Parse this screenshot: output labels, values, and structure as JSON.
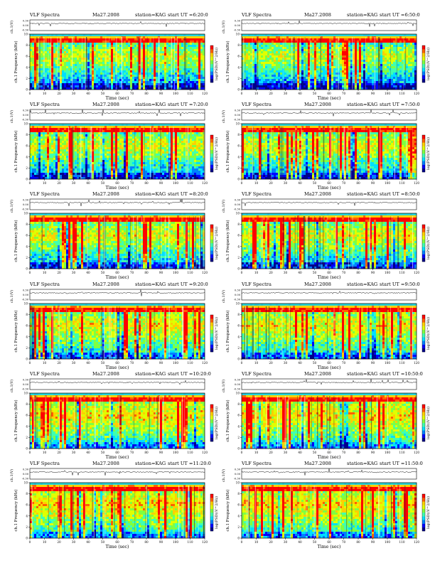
{
  "chart_data": [
    {
      "type": "heatmap",
      "col": 0,
      "row": 0,
      "title": {
        "left": "VLF Spectra",
        "mid": "Ma27.2008",
        "station": "station=KAG",
        "start": "start  UT =6:20:0"
      },
      "ylabel_top": "ch.1(V)",
      "ylabel_spec": "ch.1 Frequency (kHz)",
      "xlabel": "Time (sec)",
      "colorbar_label": "log(PSD)(V^2/Hz)",
      "x_ticks": [
        0,
        10,
        20,
        30,
        40,
        50,
        60,
        70,
        80,
        90,
        100,
        110,
        120
      ],
      "y_ticks": [
        0,
        2,
        4,
        6,
        8,
        10
      ],
      "top_ticks": [
        "0.30",
        "0.00",
        "-0.30"
      ],
      "xlim": [
        0,
        120
      ],
      "ylim": [
        0,
        10
      ],
      "intensity": 0.35
    },
    {
      "type": "heatmap",
      "col": 1,
      "row": 0,
      "title": {
        "left": "VLF Spectra",
        "mid": "Ma27.2008",
        "station": "station=KAG",
        "start": "start  UT =6:50:0"
      },
      "ylabel_top": "ch.1(V)",
      "ylabel_spec": "ch.1 Frequency (kHz)",
      "xlabel": "Time (sec)",
      "colorbar_label": "log(PSD)(V^2/Hz)",
      "x_ticks": [
        0,
        10,
        20,
        30,
        40,
        50,
        60,
        70,
        80,
        90,
        100,
        110,
        120
      ],
      "y_ticks": [
        0,
        2,
        4,
        6,
        8,
        10
      ],
      "top_ticks": [
        "0.30",
        "0.00",
        "-0.30"
      ],
      "xlim": [
        0,
        120
      ],
      "ylim": [
        0,
        10
      ],
      "intensity": 0.35
    },
    {
      "type": "heatmap",
      "col": 0,
      "row": 1,
      "title": {
        "left": "VLF Spectra",
        "mid": "Ma27.2008",
        "station": "station=KAG",
        "start": "start  UT =7:20:0"
      },
      "ylabel_top": "ch.1(V)",
      "ylabel_spec": "ch.1 Frequency (kHz)",
      "xlabel": "Time (sec)",
      "colorbar_label": "log(PSD)(V^2/Hz)",
      "x_ticks": [
        0,
        10,
        20,
        30,
        40,
        50,
        60,
        70,
        80,
        90,
        100,
        110,
        120
      ],
      "y_ticks": [
        0,
        2,
        4,
        6,
        8,
        10
      ],
      "top_ticks": [
        "0.30",
        "0.00",
        "-0.30"
      ],
      "xlim": [
        0,
        120
      ],
      "ylim": [
        0,
        10
      ],
      "intensity": 0.45
    },
    {
      "type": "heatmap",
      "col": 1,
      "row": 1,
      "title": {
        "left": "VLF Spectra",
        "mid": "Ma27.2008",
        "station": "station=KAG",
        "start": "start  UT =7:50:0"
      },
      "ylabel_top": "ch.1(V)",
      "ylabel_spec": "ch.1 Frequency (kHz)",
      "xlabel": "Time (sec)",
      "colorbar_label": "log(PSD)(V^2/Hz)",
      "x_ticks": [
        0,
        10,
        20,
        30,
        40,
        50,
        60,
        70,
        80,
        90,
        100,
        110,
        120
      ],
      "y_ticks": [
        0,
        2,
        4,
        6,
        8,
        10
      ],
      "top_ticks": [
        "0.30",
        "0.00",
        "-0.30"
      ],
      "xlim": [
        0,
        120
      ],
      "ylim": [
        0,
        10
      ],
      "intensity": 0.45
    },
    {
      "type": "heatmap",
      "col": 0,
      "row": 2,
      "title": {
        "left": "VLF Spectra",
        "mid": "Ma27.2008",
        "station": "station=KAG",
        "start": "start  UT =8:20:0"
      },
      "ylabel_top": "ch.1(V)",
      "ylabel_spec": "ch.1 Frequency (kHz)",
      "xlabel": "Time (sec)",
      "colorbar_label": "log(PSD)(V^2/Hz)",
      "x_ticks": [
        0,
        10,
        20,
        30,
        40,
        50,
        60,
        70,
        80,
        90,
        100,
        110,
        120
      ],
      "y_ticks": [
        0,
        2,
        4,
        6,
        8,
        10
      ],
      "top_ticks": [
        "0.30",
        "0.00",
        "-0.30"
      ],
      "xlim": [
        0,
        120
      ],
      "ylim": [
        0,
        10
      ],
      "intensity": 0.5
    },
    {
      "type": "heatmap",
      "col": 1,
      "row": 2,
      "title": {
        "left": "VLF Spectra",
        "mid": "Ma27.2008",
        "station": "station=KAG",
        "start": "start  UT =8:50:0"
      },
      "ylabel_top": "ch.1(V)",
      "ylabel_spec": "ch.1 Frequency (kHz)",
      "xlabel": "Time (sec)",
      "colorbar_label": "log(PSD)(V^2/Hz)",
      "x_ticks": [
        0,
        10,
        20,
        30,
        40,
        50,
        60,
        70,
        80,
        90,
        100,
        110,
        120
      ],
      "y_ticks": [
        0,
        2,
        4,
        6,
        8,
        10
      ],
      "top_ticks": [
        "0.30",
        "0.00",
        "-0.30"
      ],
      "xlim": [
        0,
        120
      ],
      "ylim": [
        0,
        10
      ],
      "intensity": 0.5
    },
    {
      "type": "heatmap",
      "col": 0,
      "row": 3,
      "title": {
        "left": "VLF Spectra",
        "mid": "Ma27.2008",
        "station": "station=KAG",
        "start": "start  UT =9:20:0"
      },
      "ylabel_top": "ch.1(V)",
      "ylabel_spec": "ch.1 Frequency (kHz)",
      "xlabel": "Time (sec)",
      "colorbar_label": "log(PSD)(V^2/Hz)",
      "x_ticks": [
        0,
        10,
        20,
        30,
        40,
        50,
        60,
        70,
        80,
        90,
        100,
        110,
        120
      ],
      "y_ticks": [
        0,
        2,
        4,
        6,
        8,
        10
      ],
      "top_ticks": [
        "0.30",
        "0.00",
        "-0.30"
      ],
      "xlim": [
        0,
        120
      ],
      "ylim": [
        0,
        10
      ],
      "intensity": 0.6
    },
    {
      "type": "heatmap",
      "col": 1,
      "row": 3,
      "title": {
        "left": "VLF Spectra",
        "mid": "Ma27.2008",
        "station": "station=KAG",
        "start": "start  UT =9:50:0"
      },
      "ylabel_top": "ch.1(V)",
      "ylabel_spec": "ch.1 Frequency (kHz)",
      "xlabel": "Time (sec)",
      "colorbar_label": "log(PSD)(V^2/Hz)",
      "x_ticks": [
        0,
        10,
        20,
        30,
        40,
        50,
        60,
        70,
        80,
        90,
        100,
        110,
        120
      ],
      "y_ticks": [
        0,
        2,
        4,
        6,
        8,
        10
      ],
      "top_ticks": [
        "0.30",
        "0.00",
        "-0.30"
      ],
      "xlim": [
        0,
        120
      ],
      "ylim": [
        0,
        10
      ],
      "intensity": 0.6
    },
    {
      "type": "heatmap",
      "col": 0,
      "row": 4,
      "title": {
        "left": "VLF Spectra",
        "mid": "Ma27.2008",
        "station": "station=KAG",
        "start": "start  UT =10:20:0"
      },
      "ylabel_top": "ch.1(V)",
      "ylabel_spec": "ch.1 Frequency (kHz)",
      "xlabel": "Time (sec)",
      "colorbar_label": "log(PSD)(V^2/Hz)",
      "x_ticks": [
        0,
        10,
        20,
        30,
        40,
        50,
        60,
        70,
        80,
        90,
        100,
        110,
        120
      ],
      "y_ticks": [
        0,
        2,
        4,
        6,
        8,
        10
      ],
      "top_ticks": [
        "0.30",
        "0.00",
        "-0.30"
      ],
      "xlim": [
        0,
        120
      ],
      "ylim": [
        0,
        10
      ],
      "intensity": 0.7
    },
    {
      "type": "heatmap",
      "col": 1,
      "row": 4,
      "title": {
        "left": "VLF Spectra",
        "mid": "Ma27.2008",
        "station": "station=KAG",
        "start": "start  UT =10:50:0"
      },
      "ylabel_top": "ch.1(V)",
      "ylabel_spec": "ch.1 Frequency (kHz)",
      "xlabel": "Time (sec)",
      "colorbar_label": "log(PSD)(V^2/Hz)",
      "x_ticks": [
        0,
        10,
        20,
        30,
        40,
        50,
        60,
        70,
        80,
        90,
        100,
        110,
        120
      ],
      "y_ticks": [
        0,
        2,
        4,
        6,
        8,
        10
      ],
      "top_ticks": [
        "0.30",
        "0.00",
        "-0.30"
      ],
      "xlim": [
        0,
        120
      ],
      "ylim": [
        0,
        10
      ],
      "intensity": 0.7
    },
    {
      "type": "heatmap",
      "col": 0,
      "row": 5,
      "title": {
        "left": "VLF Spectra",
        "mid": "Ma27.2008",
        "station": "station=KAG",
        "start": "start  UT =11:20:0"
      },
      "ylabel_top": "ch.1(V)",
      "ylabel_spec": "ch.1 Frequency (kHz)",
      "xlabel": "Time (sec)",
      "colorbar_label": "log(PSD)(V^2/Hz)",
      "x_ticks": [
        0,
        10,
        20,
        30,
        40,
        50,
        60,
        70,
        80,
        90,
        100,
        110,
        120
      ],
      "y_ticks": [
        0,
        2,
        4,
        6,
        8,
        10
      ],
      "top_ticks": [
        "0.30",
        "0.00",
        "-0.30"
      ],
      "xlim": [
        0,
        120
      ],
      "ylim": [
        0,
        10
      ],
      "intensity": 0.72
    },
    {
      "type": "heatmap",
      "col": 1,
      "row": 5,
      "title": {
        "left": "VLF Spectra",
        "mid": "Ma27.2008",
        "station": "station=KAG",
        "start": "start  UT =11:50:0"
      },
      "ylabel_top": "ch.1(V)",
      "ylabel_spec": "ch.1 Frequency (kHz)",
      "xlabel": "Time (sec)",
      "colorbar_label": "log(PSD)(V^2/Hz)",
      "x_ticks": [
        0,
        10,
        20,
        30,
        40,
        50,
        60,
        70,
        80,
        90,
        100,
        110,
        120
      ],
      "y_ticks": [
        0,
        2,
        4,
        6,
        8,
        10
      ],
      "top_ticks": [
        "0.30",
        "0.00",
        "-0.30"
      ],
      "xlim": [
        0,
        120
      ],
      "ylim": [
        0,
        10
      ],
      "intensity": 0.72
    }
  ],
  "colormap": [
    "#00008c",
    "#0000ff",
    "#0080ff",
    "#00e0ff",
    "#40ffb0",
    "#80ff40",
    "#e0ff00",
    "#ffd000",
    "#ff6000",
    "#ff0000"
  ]
}
